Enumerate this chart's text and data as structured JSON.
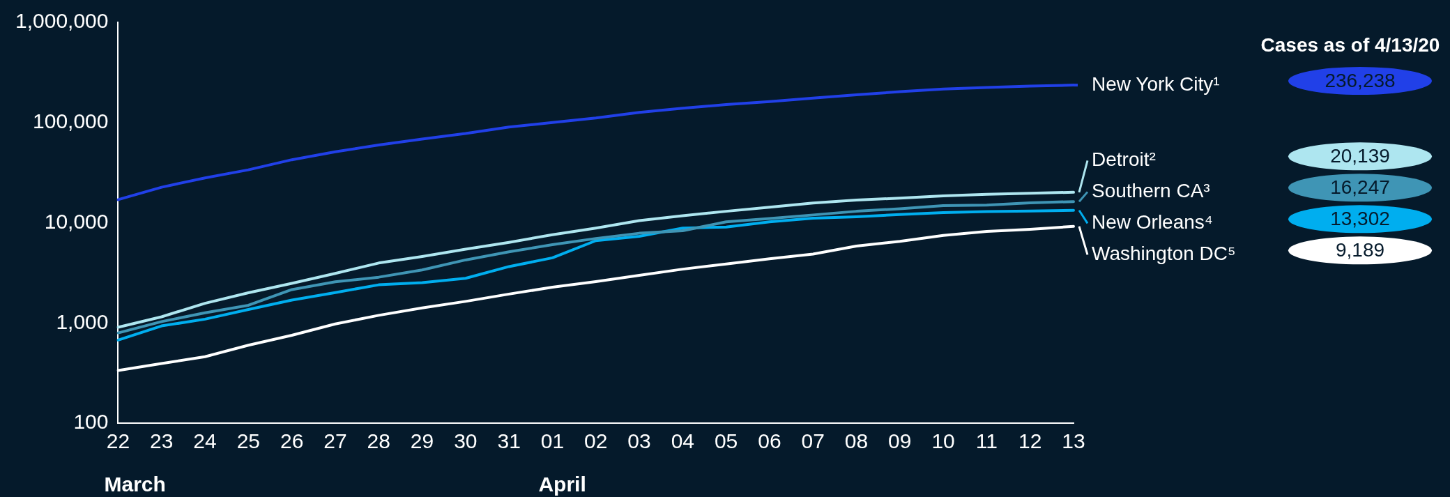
{
  "chart_data": {
    "type": "line",
    "log": "y",
    "grid": false,
    "legend": "right",
    "marker": "none",
    "line_style": "solid",
    "legend_title": "Cases as of 4/13/20",
    "categories": [
      "22",
      "23",
      "24",
      "25",
      "26",
      "27",
      "28",
      "29",
      "30",
      "31",
      "01",
      "02",
      "03",
      "04",
      "05",
      "06",
      "07",
      "08",
      "09",
      "10",
      "11",
      "12",
      "13"
    ],
    "ylim": [
      100,
      1000000
    ],
    "yticks": [
      100,
      {
        "value": 1000,
        "label": "1,000"
      },
      {
        "value": 10000,
        "label": "10,000"
      },
      {
        "value": 100000,
        "label": "100,000"
      },
      {
        "value": 1000000,
        "label": "1,000,000"
      }
    ],
    "annotations": [
      "March",
      "April",
      "236,238",
      "20,139",
      "16,247",
      "13,302",
      "9,189"
    ],
    "series": [
      {
        "name": "New York City¹",
        "color": "#2140e8",
        "values": [
          17000,
          22600,
          28000,
          33700,
          42500,
          51000,
          59700,
          68300,
          77600,
          90200,
          100000,
          111000,
          126000,
          139000,
          151000,
          162000,
          175000,
          189000,
          203000,
          216000,
          224000,
          231000,
          236238
        ]
      },
      {
        "name": "Detroit²",
        "color": "#aee6f0",
        "values": [
          904,
          1150,
          1570,
          2000,
          2480,
          3120,
          3960,
          4600,
          5440,
          6370,
          7590,
          8840,
          10500,
          11750,
          13000,
          14300,
          15700,
          16800,
          17600,
          18500,
          19200,
          19700,
          20139
        ]
      },
      {
        "name": "Southern CA³",
        "color": "#3f95b5",
        "values": [
          795,
          1030,
          1260,
          1500,
          2150,
          2570,
          2860,
          3380,
          4250,
          5130,
          6030,
          6960,
          7850,
          8320,
          10200,
          11000,
          11950,
          13000,
          13800,
          14800,
          15000,
          15800,
          16247
        ]
      },
      {
        "name": "New Orleans⁴",
        "color": "#00aeef",
        "values": [
          673,
          933,
          1090,
          1360,
          1690,
          2010,
          2400,
          2520,
          2790,
          3650,
          4460,
          6620,
          7310,
          8830,
          9050,
          10200,
          11100,
          11480,
          12050,
          12600,
          12900,
          13100,
          13302
        ]
      },
      {
        "name": "Washington DC⁵",
        "color": "#ffffff",
        "values": [
          335,
          393,
          460,
          599,
          753,
          977,
          1190,
          1410,
          1640,
          1940,
          2270,
          2580,
          2980,
          3440,
          3870,
          4360,
          4860,
          5840,
          6520,
          7470,
          8190,
          8600,
          9189
        ]
      }
    ]
  }
}
